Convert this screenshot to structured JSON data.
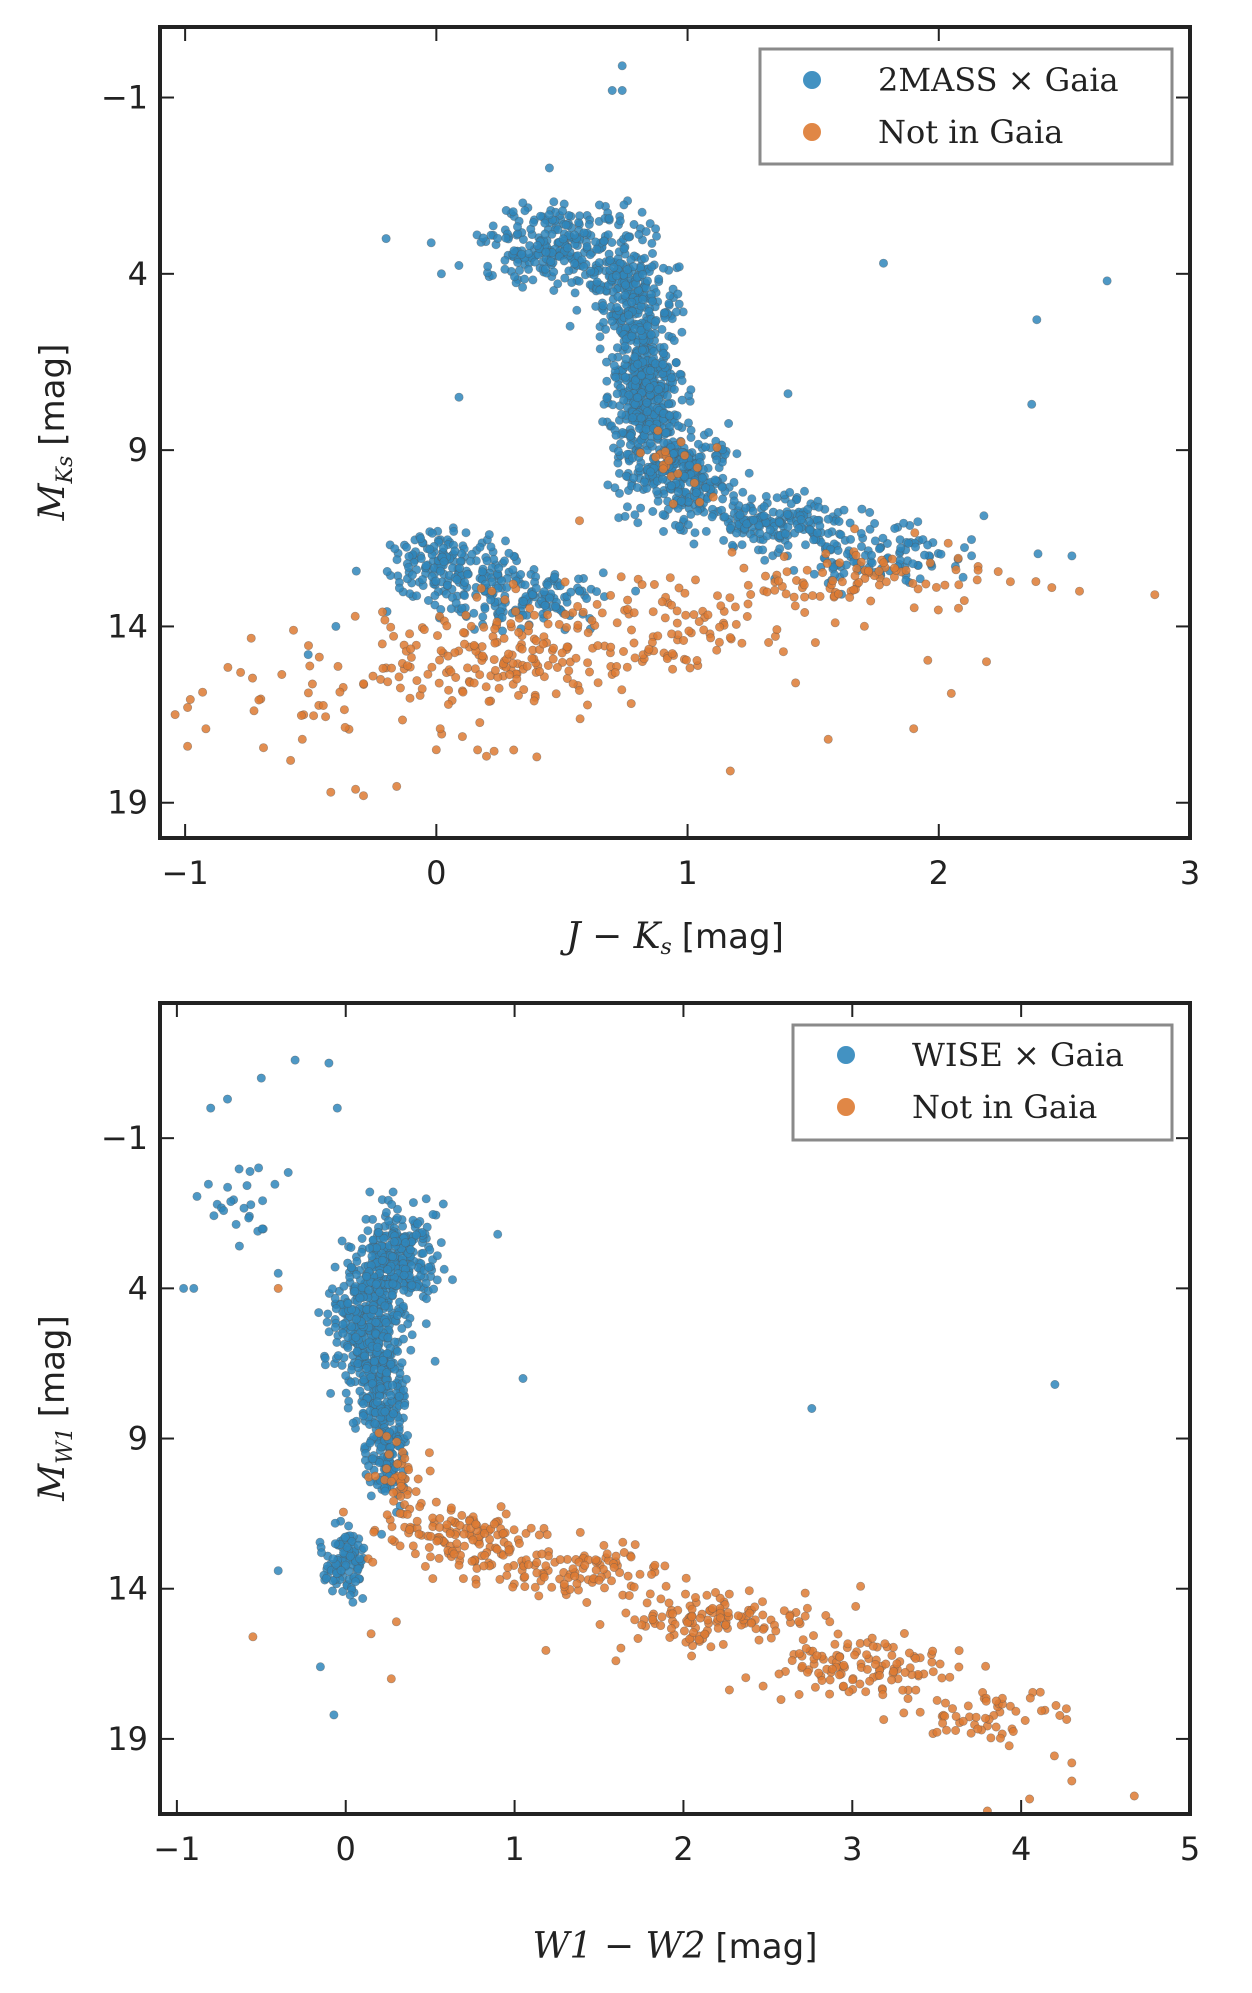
{
  "chart_data": [
    {
      "type": "scatter",
      "name": "top-panel",
      "xlabel_math": "J − K",
      "xlabel_sub": "s",
      "xlabel_unit": "[mag]",
      "ylabel_math": "M",
      "ylabel_sub": "Ks",
      "ylabel_unit": "[mag]",
      "xlim": [
        -1.1,
        3.0
      ],
      "ylim": [
        20.0,
        -3.0
      ],
      "xticks": [
        -1,
        0,
        1,
        2,
        3
      ],
      "xtick_labels": [
        "−1",
        "0",
        "1",
        "2",
        "3"
      ],
      "yticks": [
        -1,
        4,
        9,
        14,
        19
      ],
      "ytick_labels": [
        "−1",
        "4",
        "9",
        "14",
        "19"
      ],
      "legend": {
        "position": "top-right",
        "entries": [
          "2MASS × Gaia",
          "Not in Gaia"
        ]
      },
      "series": [
        {
          "name": "2MASS × Gaia",
          "color": "#2f86bb",
          "clusters": [
            {
              "cx": 0.5,
              "cy": 3.2,
              "sx": 0.16,
              "sy": 0.6,
              "n": 260
            },
            {
              "cx": 0.75,
              "cy": 4.5,
              "sx": 0.08,
              "sy": 0.6,
              "n": 160
            },
            {
              "cx": 0.83,
              "cy": 7.2,
              "sx": 0.07,
              "sy": 1.3,
              "n": 520
            },
            {
              "cx": 1.0,
              "cy": 9.7,
              "sx": 0.09,
              "sy": 0.6,
              "n": 240
            },
            {
              "cx": 1.35,
              "cy": 11.0,
              "sx": 0.15,
              "sy": 0.4,
              "n": 180
            },
            {
              "cx": 1.75,
              "cy": 11.9,
              "sx": 0.18,
              "sy": 0.5,
              "n": 110
            },
            {
              "cx": 0.05,
              "cy": 12.3,
              "sx": 0.12,
              "sy": 0.5,
              "n": 160
            },
            {
              "cx": 0.35,
              "cy": 13.1,
              "sx": 0.18,
              "sy": 0.4,
              "n": 150
            }
          ],
          "outliers": [
            [
              0.74,
              -1.9
            ],
            [
              0.7,
              -1.2
            ],
            [
              0.74,
              -1.2
            ],
            [
              1.78,
              3.7
            ],
            [
              2.67,
              4.2
            ],
            [
              2.39,
              5.3
            ],
            [
              2.37,
              7.7
            ],
            [
              0.09,
              7.5
            ],
            [
              -0.2,
              3.0
            ],
            [
              0.02,
              4.0
            ],
            [
              0.45,
              1.0
            ],
            [
              2.53,
              12.0
            ],
            [
              -0.51,
              14.8
            ],
            [
              -0.4,
              14.0
            ],
            [
              0.57,
              13.0
            ],
            [
              1.4,
              7.4
            ]
          ]
        },
        {
          "name": "Not in Gaia",
          "color": "#dd7a32",
          "clusters": [
            {
              "cx": 0.2,
              "cy": 15.0,
              "sx": 0.3,
              "sy": 0.7,
              "n": 180
            },
            {
              "cx": 0.8,
              "cy": 14.0,
              "sx": 0.35,
              "sy": 0.8,
              "n": 110
            },
            {
              "cx": 1.75,
              "cy": 12.6,
              "sx": 0.25,
              "sy": 0.5,
              "n": 90
            },
            {
              "cx": -0.4,
              "cy": 16.5,
              "sx": 0.3,
              "sy": 0.9,
              "n": 40
            },
            {
              "cx": 0.95,
              "cy": 9.5,
              "sx": 0.08,
              "sy": 0.5,
              "n": 20
            }
          ],
          "outliers": [
            [
              -0.99,
              16.3
            ],
            [
              -0.99,
              17.4
            ],
            [
              -0.58,
              17.8
            ],
            [
              -0.42,
              18.7
            ],
            [
              -0.29,
              18.8
            ],
            [
              2.86,
              13.1
            ],
            [
              2.45,
              12.9
            ],
            [
              2.56,
              13.0
            ],
            [
              2.19,
              15.0
            ],
            [
              1.17,
              18.1
            ],
            [
              0.4,
              17.7
            ],
            [
              1.56,
              17.2
            ],
            [
              1.9,
              16.9
            ],
            [
              1.43,
              15.6
            ],
            [
              2.05,
              15.9
            ],
            [
              0.0,
              17.5
            ],
            [
              0.57,
              11.0
            ]
          ]
        }
      ]
    },
    {
      "type": "scatter",
      "name": "bottom-panel",
      "xlabel_math": "W1 − W2",
      "xlabel_sub": "",
      "xlabel_unit": "[mag]",
      "ylabel_math": "M",
      "ylabel_sub": "W1",
      "ylabel_unit": "[mag]",
      "xlim": [
        -1.1,
        5.0
      ],
      "ylim": [
        21.5,
        -5.5
      ],
      "xticks": [
        -1,
        0,
        1,
        2,
        3,
        4,
        5
      ],
      "xtick_labels": [
        "−1",
        "0",
        "1",
        "2",
        "3",
        "4",
        "5"
      ],
      "yticks": [
        -1,
        4,
        9,
        14,
        19
      ],
      "ytick_labels": [
        "−1",
        "4",
        "9",
        "14",
        "19"
      ],
      "legend": {
        "position": "top-right",
        "entries": [
          "WISE × Gaia",
          "Not in Gaia"
        ]
      },
      "series": [
        {
          "name": "WISE × Gaia",
          "color": "#2f86bb",
          "clusters": [
            {
              "cx": 0.3,
              "cy": 3.0,
              "sx": 0.12,
              "sy": 0.8,
              "n": 280
            },
            {
              "cx": 0.12,
              "cy": 5.2,
              "sx": 0.1,
              "sy": 1.0,
              "n": 320
            },
            {
              "cx": 0.22,
              "cy": 7.8,
              "sx": 0.07,
              "sy": 1.0,
              "n": 200
            },
            {
              "cx": 0.25,
              "cy": 9.8,
              "sx": 0.06,
              "sy": 0.7,
              "n": 80
            },
            {
              "cx": 0.0,
              "cy": 13.0,
              "sx": 0.07,
              "sy": 0.6,
              "n": 100
            },
            {
              "cx": -0.6,
              "cy": 1.0,
              "sx": 0.12,
              "sy": 0.8,
              "n": 25
            }
          ],
          "outliers": [
            [
              -0.1,
              -3.5
            ],
            [
              -0.3,
              -3.6
            ],
            [
              -0.5,
              -3.0
            ],
            [
              -0.7,
              -2.3
            ],
            [
              -0.8,
              -2.0
            ],
            [
              -0.9,
              4.0
            ],
            [
              -0.96,
              4.0
            ],
            [
              -0.4,
              3.5
            ],
            [
              -0.05,
              -2.0
            ],
            [
              1.05,
              7.0
            ],
            [
              2.76,
              8.0
            ],
            [
              4.2,
              7.2
            ],
            [
              -0.07,
              18.2
            ],
            [
              -0.15,
              16.6
            ],
            [
              -0.4,
              13.4
            ],
            [
              0.9,
              2.2
            ]
          ]
        },
        {
          "name": "Not in Gaia",
          "color": "#dd7a32",
          "clusters": [
            {
              "cx": 0.3,
              "cy": 10.3,
              "sx": 0.07,
              "sy": 0.8,
              "n": 40
            },
            {
              "cx": 0.65,
              "cy": 12.2,
              "sx": 0.2,
              "sy": 0.5,
              "n": 120
            },
            {
              "cx": 1.3,
              "cy": 13.4,
              "sx": 0.3,
              "sy": 0.5,
              "n": 110
            },
            {
              "cx": 2.2,
              "cy": 15.0,
              "sx": 0.3,
              "sy": 0.5,
              "n": 130
            },
            {
              "cx": 3.0,
              "cy": 16.6,
              "sx": 0.3,
              "sy": 0.5,
              "n": 120
            },
            {
              "cx": 3.8,
              "cy": 18.2,
              "sx": 0.25,
              "sy": 0.5,
              "n": 60
            }
          ],
          "outliers": [
            [
              -0.55,
              15.6
            ],
            [
              0.15,
              15.5
            ],
            [
              0.3,
              15.1
            ],
            [
              0.27,
              17.0
            ],
            [
              -0.4,
              4.0
            ],
            [
              1.6,
              16.4
            ],
            [
              4.3,
              19.8
            ],
            [
              4.3,
              20.4
            ],
            [
              4.67,
              20.9
            ],
            [
              3.8,
              21.4
            ],
            [
              4.05,
              21.0
            ]
          ]
        }
      ]
    }
  ]
}
